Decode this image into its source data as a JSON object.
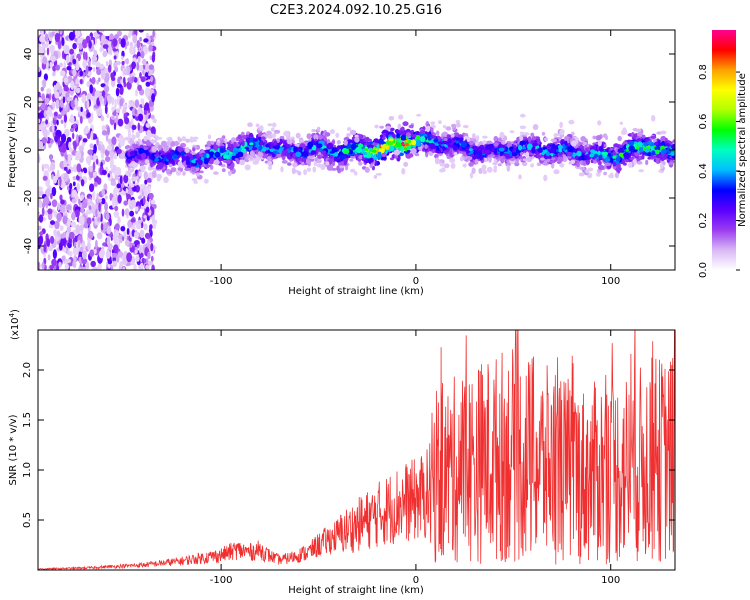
{
  "title": "C2E3.2024.092.10.25.G16",
  "chart_data": [
    {
      "type": "heatmap",
      "xlabel": "Height of straight line (km)",
      "ylabel": "Frequency (Hz)",
      "xlim": [
        -194,
        133
      ],
      "ylim": [
        -50,
        50
      ],
      "xticks": [
        -100,
        0,
        100
      ],
      "xtick_labels": [
        "-100",
        "0",
        "100"
      ],
      "yticks": [
        -40,
        -20,
        0,
        20,
        40
      ],
      "ytick_labels": [
        "-40",
        "-20",
        "0",
        "20",
        "40"
      ],
      "colorbar": {
        "label": "Normalized spectral amplitude",
        "range": [
          0,
          0.97
        ],
        "ticks": [
          0,
          0.2,
          0.4,
          0.6,
          0.8
        ],
        "tick_labels": [
          "0.0",
          "0.2",
          "0.4",
          "0.6",
          "0.8"
        ],
        "colors": [
          "#ffffff",
          "#d9b8f5",
          "#9a3cf0",
          "#5a00ff",
          "#0000ff",
          "#00bfff",
          "#00ffc0",
          "#00ff00",
          "#b0ff00",
          "#ffff00",
          "#ffa000",
          "#ff0000",
          "#ff0090"
        ]
      },
      "ridge": {
        "x": [
          -145,
          -130,
          -115,
          -100,
          -90,
          -80,
          -65,
          -50,
          -40,
          -30,
          -20,
          -12,
          -6,
          0,
          10,
          20,
          30,
          40,
          55,
          70,
          85,
          100,
          110,
          120,
          133
        ],
        "center_hz": [
          -2,
          -3,
          -4,
          -2,
          0,
          2,
          -1,
          1,
          -1,
          0,
          0,
          2,
          4,
          4,
          3,
          2,
          0,
          -1,
          1,
          0,
          -1,
          -3,
          0,
          2,
          -2
        ],
        "peak_amplitude": [
          0.3,
          0.4,
          0.4,
          0.5,
          0.5,
          0.45,
          0.4,
          0.45,
          0.5,
          0.55,
          0.8,
          0.85,
          0.9,
          0.6,
          0.45,
          0.4,
          0.4,
          0.35,
          0.4,
          0.45,
          0.4,
          0.5,
          0.55,
          0.6,
          0.5
        ]
      },
      "noisy_region_x": [
        -194,
        -140
      ]
    },
    {
      "type": "line",
      "xlabel": "Height of straight line (km)",
      "ylabel": "SNR (10 * v/v)",
      "y_scale_label": "(x10",
      "y_scale_exp": "4",
      "y_scale_close": ")",
      "xlim": [
        -194,
        133
      ],
      "ylim": [
        0,
        24000
      ],
      "xticks": [
        -100,
        0,
        100
      ],
      "xtick_labels": [
        "-100",
        "0",
        "100"
      ],
      "yticks": [
        5000,
        10000,
        15000,
        20000
      ],
      "ytick_labels": [
        "0.5",
        "1.0",
        "1.5",
        "2.0"
      ],
      "color": "#f03030",
      "series": [
        {
          "x": [
            -194,
            -170,
            -150,
            -140,
            -130,
            -120,
            -110,
            -100,
            -92,
            -85,
            -80,
            -75,
            -70,
            -65,
            -60,
            -55,
            -50,
            -45,
            -40,
            -35,
            -30,
            -25,
            -20,
            -15,
            -10,
            -5,
            0,
            5,
            8,
            10,
            15,
            20,
            25,
            30,
            35,
            40,
            45,
            50,
            55,
            60,
            65,
            70,
            75,
            80,
            85,
            90,
            95,
            100,
            105,
            110,
            115,
            120,
            125,
            130,
            133
          ],
          "y": [
            100,
            200,
            400,
            500,
            700,
            900,
            1200,
            1500,
            2000,
            1800,
            2000,
            1400,
            1000,
            1200,
            1500,
            1800,
            2500,
            3000,
            3500,
            4000,
            4500,
            5000,
            5500,
            6000,
            6500,
            6800,
            7000,
            7500,
            8000,
            9000,
            9500,
            10000,
            10500,
            10500,
            11000,
            11000,
            11500,
            11500,
            11000,
            11000,
            10500,
            10500,
            10000,
            10000,
            9500,
            9500,
            10000,
            10000,
            10000,
            10500,
            10500,
            11000,
            11000,
            11000,
            11000
          ]
        }
      ]
    }
  ]
}
